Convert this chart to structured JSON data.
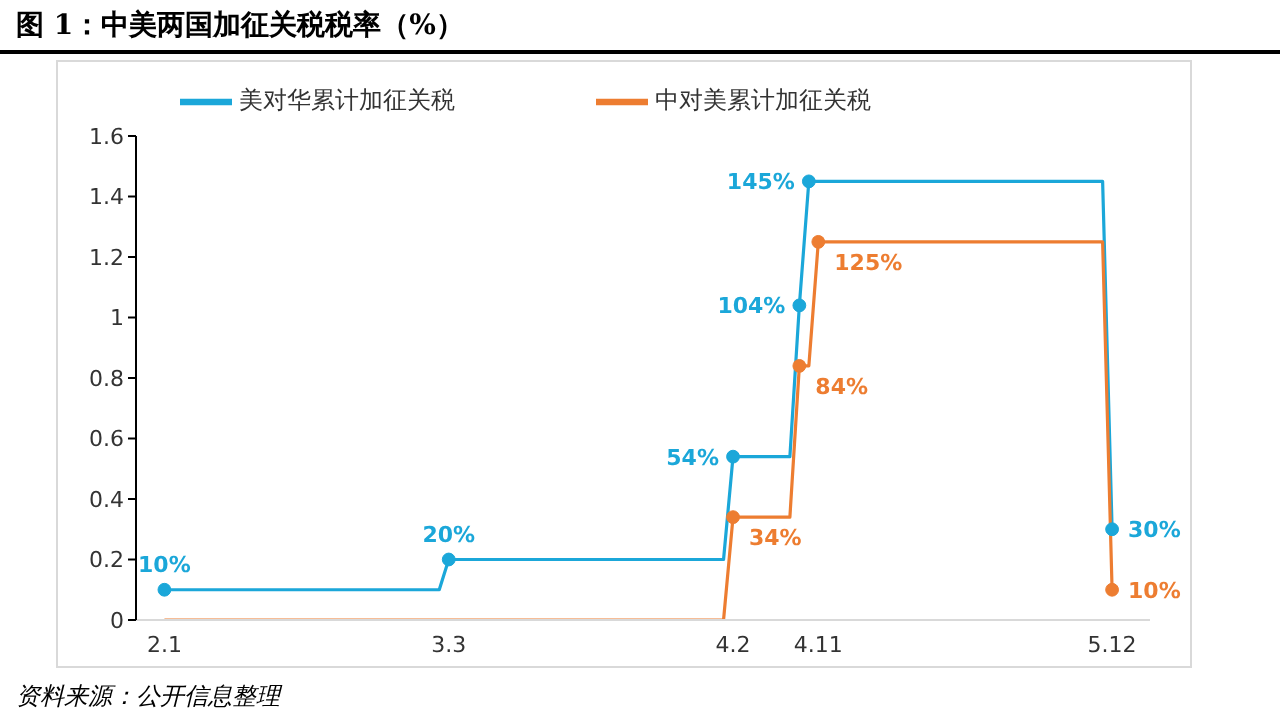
{
  "chart_data": {
    "type": "line",
    "title": "图 1：中美两国加征关税税率（%）",
    "annotations": [
      "资料来源：公开信息整理"
    ],
    "xlim": [
      "--01-29",
      "--05-16"
    ],
    "xticks": [
      {
        "value": "--02-01",
        "label": "2.1"
      },
      {
        "value": "--03-03",
        "label": "3.3"
      },
      {
        "value": "--04-02",
        "label": "4.2"
      },
      {
        "value": "--04-11",
        "label": "4.11"
      },
      {
        "value": "--05-12",
        "label": "5.12"
      }
    ],
    "ylim": [
      0,
      1.6
    ],
    "yticks": [
      0,
      0.2,
      0.4,
      0.6,
      0.8,
      1,
      1.2,
      1.4,
      1.6
    ],
    "grid": false,
    "legend": "top",
    "line_style": "solid",
    "series": [
      {
        "name": "美对华累计加征关税",
        "color": "#1ba7d9",
        "marker": "circle",
        "x": [
          "--02-01",
          "--03-02",
          "--03-03",
          "--04-01",
          "--04-02",
          "--04-08",
          "--04-09",
          "--04-10",
          "--05-11",
          "--05-12"
        ],
        "values": [
          0.1,
          0.1,
          0.2,
          0.2,
          0.54,
          0.54,
          1.04,
          1.45,
          1.45,
          0.3
        ],
        "value_labels": [
          "10%",
          null,
          "20%",
          null,
          "54%",
          null,
          "104%",
          "145%",
          null,
          "30%"
        ]
      },
      {
        "name": "中对美累计加征关税",
        "color": "#ed7d31",
        "x": [
          "--02-01",
          "--04-01",
          "--04-02",
          "--04-08",
          "--04-09",
          "--04-10",
          "--04-11",
          "--05-11",
          "--05-12"
        ],
        "values": [
          0,
          0,
          0.34,
          0.34,
          0.84,
          0.84,
          1.25,
          1.25,
          0.1
        ],
        "value_labels": [
          null,
          null,
          "34%",
          null,
          "84%",
          null,
          "125%",
          null,
          "10%"
        ]
      }
    ]
  }
}
